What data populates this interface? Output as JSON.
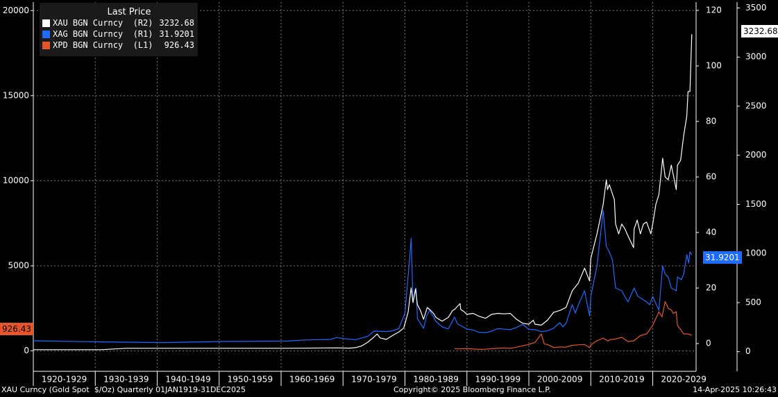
{
  "chart_data": {
    "type": "line",
    "legend_title": "Last Price",
    "legend_placement": "top-left",
    "grid": true,
    "x_categories": [
      "1920-1929",
      "1930-1939",
      "1940-1949",
      "1950-1959",
      "1960-1969",
      "1970-1979",
      "1980-1989",
      "1990-1999",
      "2000-2009",
      "2010-2019",
      "2020-2029"
    ],
    "x_range": [
      1919,
      2026
    ],
    "axes": {
      "left": {
        "ticks": [
          "0",
          "5000",
          "10000",
          "15000",
          "20000"
        ],
        "range": [
          -1200,
          20500
        ]
      },
      "right1": {
        "ticks": [
          "0",
          "20",
          "40",
          "60",
          "80",
          "100",
          "120"
        ],
        "range": [
          -10,
          123
        ]
      },
      "right2": {
        "ticks": [
          "0",
          "500",
          "1000",
          "1500",
          "2000",
          "2500",
          "3000",
          "3500"
        ],
        "range": [
          -200,
          3560
        ]
      }
    },
    "series": [
      {
        "name": "XAU BGN Curncy",
        "axis": "R2",
        "axis_label": "(R2)",
        "last": "3232.68",
        "color": "#ffffff",
        "points": [
          [
            1919,
            20.7
          ],
          [
            1930,
            20.7
          ],
          [
            1934,
            35
          ],
          [
            1960,
            35
          ],
          [
            1968,
            39
          ],
          [
            1970,
            36
          ],
          [
            1971,
            41
          ],
          [
            1972,
            58
          ],
          [
            1973,
            97
          ],
          [
            1974,
            150
          ],
          [
            1974.5,
            180
          ],
          [
            1975,
            140
          ],
          [
            1976,
            125
          ],
          [
            1977,
            165
          ],
          [
            1978,
            200
          ],
          [
            1978.8,
            240
          ],
          [
            1979.5,
            400
          ],
          [
            1980,
            650
          ],
          [
            1980.3,
            500
          ],
          [
            1980.7,
            640
          ],
          [
            1981,
            480
          ],
          [
            1981.5,
            420
          ],
          [
            1982,
            330
          ],
          [
            1982.6,
            450
          ],
          [
            1983,
            430
          ],
          [
            1983.6,
            390
          ],
          [
            1984,
            350
          ],
          [
            1985,
            310
          ],
          [
            1986,
            350
          ],
          [
            1986.7,
            420
          ],
          [
            1987,
            430
          ],
          [
            1987.9,
            490
          ],
          [
            1988,
            430
          ],
          [
            1988.5,
            410
          ],
          [
            1989,
            380
          ],
          [
            1990,
            390
          ],
          [
            1991,
            360
          ],
          [
            1992,
            340
          ],
          [
            1993,
            380
          ],
          [
            1994,
            390
          ],
          [
            1995,
            385
          ],
          [
            1996,
            390
          ],
          [
            1997,
            330
          ],
          [
            1998,
            290
          ],
          [
            1999,
            280
          ],
          [
            1999.7,
            320
          ],
          [
            2000,
            280
          ],
          [
            2001,
            270
          ],
          [
            2002,
            320
          ],
          [
            2003,
            400
          ],
          [
            2004,
            420
          ],
          [
            2005,
            450
          ],
          [
            2006,
            620
          ],
          [
            2007,
            700
          ],
          [
            2008,
            850
          ],
          [
            2008.8,
            720
          ],
          [
            2009,
            950
          ],
          [
            2010,
            1200
          ],
          [
            2011,
            1500
          ],
          [
            2011.5,
            1750
          ],
          [
            2011.7,
            1650
          ],
          [
            2012,
            1700
          ],
          [
            2012.8,
            1550
          ],
          [
            2013,
            1300
          ],
          [
            2013.5,
            1200
          ],
          [
            2014,
            1300
          ],
          [
            2014.5,
            1250
          ],
          [
            2015,
            1180
          ],
          [
            2015.9,
            1060
          ],
          [
            2016,
            1250
          ],
          [
            2016.5,
            1340
          ],
          [
            2017,
            1200
          ],
          [
            2017.5,
            1300
          ],
          [
            2018,
            1320
          ],
          [
            2018.7,
            1200
          ],
          [
            2019,
            1300
          ],
          [
            2019.5,
            1500
          ],
          [
            2020,
            1600
          ],
          [
            2020.6,
            1970
          ],
          [
            2021,
            1780
          ],
          [
            2021.5,
            1750
          ],
          [
            2022,
            1900
          ],
          [
            2022.8,
            1650
          ],
          [
            2023,
            1900
          ],
          [
            2023.5,
            1950
          ],
          [
            2024,
            2200
          ],
          [
            2024.5,
            2400
          ],
          [
            2024.7,
            2650
          ],
          [
            2025,
            2650
          ],
          [
            2025.3,
            3232.68
          ]
        ]
      },
      {
        "name": "XAG BGN Curncy",
        "axis": "R1",
        "axis_label": "(R1)",
        "last": "31.9201",
        "color": "#1e6bff",
        "points": [
          [
            1919,
            1.0
          ],
          [
            1930,
            0.6
          ],
          [
            1940,
            0.35
          ],
          [
            1950,
            0.75
          ],
          [
            1960,
            0.9
          ],
          [
            1963,
            1.29
          ],
          [
            1967,
            1.5
          ],
          [
            1968,
            2.2
          ],
          [
            1969,
            1.8
          ],
          [
            1971,
            1.4
          ],
          [
            1973,
            2.6
          ],
          [
            1974,
            4.5
          ],
          [
            1975,
            4.4
          ],
          [
            1976,
            4.3
          ],
          [
            1977,
            4.6
          ],
          [
            1978,
            5.4
          ],
          [
            1979,
            11
          ],
          [
            1979.8,
            32
          ],
          [
            1980,
            38
          ],
          [
            1980.3,
            15
          ],
          [
            1980.8,
            20
          ],
          [
            1981,
            9
          ],
          [
            1982,
            5.5
          ],
          [
            1982.5,
            10
          ],
          [
            1983,
            12
          ],
          [
            1984,
            8
          ],
          [
            1985,
            6
          ],
          [
            1986,
            5.3
          ],
          [
            1987,
            9.5
          ],
          [
            1987.5,
            7
          ],
          [
            1988,
            6.5
          ],
          [
            1989,
            5.2
          ],
          [
            1990,
            4.9
          ],
          [
            1991,
            4.0
          ],
          [
            1992,
            3.9
          ],
          [
            1993,
            4.5
          ],
          [
            1994,
            5.4
          ],
          [
            1995,
            5.2
          ],
          [
            1996,
            5.0
          ],
          [
            1997,
            5.8
          ],
          [
            1998,
            6.9
          ],
          [
            1999,
            5.1
          ],
          [
            2000,
            5.0
          ],
          [
            2001,
            4.3
          ],
          [
            2002,
            4.6
          ],
          [
            2003,
            5.5
          ],
          [
            2004,
            7.5
          ],
          [
            2004.5,
            6
          ],
          [
            2005,
            7.3
          ],
          [
            2006,
            14
          ],
          [
            2006.5,
            11
          ],
          [
            2007,
            14
          ],
          [
            2008,
            19
          ],
          [
            2008.8,
            10
          ],
          [
            2009,
            17
          ],
          [
            2010,
            28
          ],
          [
            2011,
            48
          ],
          [
            2011.5,
            35
          ],
          [
            2012,
            33
          ],
          [
            2012.5,
            30
          ],
          [
            2013,
            20
          ],
          [
            2014,
            19
          ],
          [
            2015,
            15
          ],
          [
            2016,
            20
          ],
          [
            2016.6,
            17
          ],
          [
            2017,
            16.5
          ],
          [
            2018,
            15
          ],
          [
            2018.5,
            14
          ],
          [
            2019,
            17
          ],
          [
            2020,
            12
          ],
          [
            2020.6,
            28
          ],
          [
            2021,
            25
          ],
          [
            2021.5,
            24
          ],
          [
            2022,
            20
          ],
          [
            2022.8,
            19
          ],
          [
            2023,
            24
          ],
          [
            2023.6,
            23
          ],
          [
            2024,
            25
          ],
          [
            2024.5,
            32
          ],
          [
            2024.8,
            29
          ],
          [
            2025,
            33
          ],
          [
            2025.3,
            31.9201
          ]
        ]
      },
      {
        "name": "XPD BGN Curncy",
        "axis": "L1",
        "axis_label": "(L1)",
        "last": "926.43",
        "color": "#e8542a",
        "points": [
          [
            1987,
            130
          ],
          [
            1988,
            120
          ],
          [
            1989,
            140
          ],
          [
            1990,
            110
          ],
          [
            1991,
            90
          ],
          [
            1992,
            100
          ],
          [
            1993,
            130
          ],
          [
            1994,
            150
          ],
          [
            1995,
            170
          ],
          [
            1996,
            140
          ],
          [
            1997,
            220
          ],
          [
            1998,
            300
          ],
          [
            1999,
            380
          ],
          [
            2000,
            500
          ],
          [
            2001,
            1000
          ],
          [
            2001.5,
            400
          ],
          [
            2002,
            380
          ],
          [
            2003,
            200
          ],
          [
            2004,
            230
          ],
          [
            2005,
            220
          ],
          [
            2006,
            330
          ],
          [
            2007,
            360
          ],
          [
            2008,
            380
          ],
          [
            2008.8,
            190
          ],
          [
            2009,
            350
          ],
          [
            2010,
            600
          ],
          [
            2011,
            750
          ],
          [
            2011.8,
            580
          ],
          [
            2012,
            650
          ],
          [
            2013,
            700
          ],
          [
            2014,
            800
          ],
          [
            2015,
            550
          ],
          [
            2016,
            600
          ],
          [
            2017,
            900
          ],
          [
            2018,
            1000
          ],
          [
            2019,
            1500
          ],
          [
            2020,
            2300
          ],
          [
            2020.5,
            2000
          ],
          [
            2021,
            2900
          ],
          [
            2021.5,
            2500
          ],
          [
            2022,
            2400
          ],
          [
            2022.3,
            2200
          ],
          [
            2022.8,
            2300
          ],
          [
            2023,
            1500
          ],
          [
            2024,
            1000
          ],
          [
            2024.6,
            1000
          ],
          [
            2025,
            960
          ],
          [
            2025.3,
            926.43
          ]
        ]
      }
    ]
  },
  "last_tags": {
    "xau": "3232.68",
    "xag": "31.9201",
    "xpd": "926.43"
  },
  "footer": {
    "left": "XAU Curncy (Gold Spot  $/Oz) Quarterly 01JAN1919-31DEC2025",
    "center": "Copyright© 2025 Bloomberg Finance L.P.",
    "right": "14-Apr-2025 10:26:43"
  }
}
